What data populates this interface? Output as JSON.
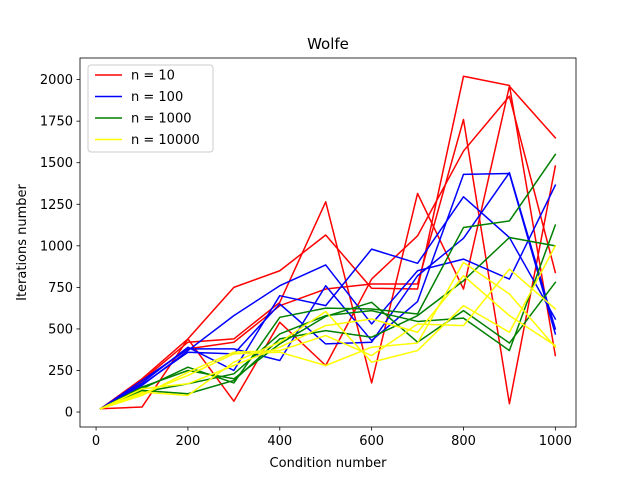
{
  "chart_data": {
    "type": "line",
    "title": "Wolfe",
    "xlabel": "Condition number",
    "ylabel": "Iterations number",
    "xlim": [
      -35,
      1045
    ],
    "ylim": [
      -90,
      2130
    ],
    "x_ticks": [
      0,
      200,
      400,
      600,
      800,
      1000
    ],
    "y_ticks": [
      0,
      250,
      500,
      750,
      1000,
      1250,
      1500,
      1750,
      2000
    ],
    "grid": false,
    "legend_position": "top-left",
    "x": [
      10,
      100,
      200,
      300,
      400,
      500,
      600,
      700,
      800,
      900,
      1000
    ],
    "series": [
      {
        "name": "n = 10",
        "group": "n = 10",
        "color": "#ff0000",
        "values": [
          20,
          190,
          420,
          440,
          660,
          1265,
          175,
          1315,
          740,
          1960,
          1650
        ]
      },
      {
        "group": "n = 10",
        "color": "#ff0000",
        "values": [
          20,
          30,
          440,
          750,
          850,
          1065,
          745,
          740,
          2020,
          1965,
          340
        ]
      },
      {
        "group": "n = 10",
        "color": "#ff0000",
        "values": [
          20,
          200,
          440,
          65,
          540,
          280,
          800,
          1060,
          1570,
          1900,
          840
        ]
      },
      {
        "group": "n = 10",
        "color": "#ff0000",
        "values": [
          20,
          185,
          380,
          420,
          640,
          740,
          770,
          770,
          1760,
          50,
          1480
        ]
      },
      {
        "name": "n = 100",
        "group": "n = 100",
        "color": "#0000ff",
        "values": [
          20,
          160,
          370,
          580,
          760,
          885,
          530,
          850,
          920,
          800,
          1365
        ]
      },
      {
        "group": "n = 100",
        "color": "#0000ff",
        "values": [
          20,
          175,
          390,
          250,
          700,
          640,
          980,
          895,
          1295,
          1050,
          560
        ]
      },
      {
        "group": "n = 100",
        "color": "#0000ff",
        "values": [
          20,
          190,
          380,
          380,
          310,
          760,
          430,
          665,
          1430,
          1435,
          470
        ]
      },
      {
        "group": "n = 100",
        "color": "#0000ff",
        "values": [
          20,
          165,
          360,
          350,
          650,
          410,
          420,
          820,
          1045,
          1440,
          500
        ]
      },
      {
        "name": "n = 1000",
        "group": "n = 1000",
        "color": "#008000",
        "values": [
          20,
          140,
          270,
          175,
          570,
          625,
          620,
          590,
          1110,
          1150,
          1550
        ]
      },
      {
        "group": "n = 1000",
        "color": "#008000",
        "values": [
          20,
          120,
          170,
          230,
          470,
          580,
          610,
          545,
          565,
          370,
          1125
        ]
      },
      {
        "group": "n = 1000",
        "color": "#008000",
        "values": [
          20,
          150,
          250,
          200,
          410,
          575,
          660,
          420,
          610,
          415,
          780
        ]
      },
      {
        "group": "n = 1000",
        "color": "#008000",
        "values": [
          20,
          130,
          110,
          190,
          440,
          490,
          450,
          580,
          790,
          1050,
          1000
        ]
      },
      {
        "name": "n = 10000",
        "group": "n = 10000",
        "color": "#ffff00",
        "values": [
          20,
          120,
          100,
          300,
          420,
          605,
          300,
          370,
          640,
          480,
          1000
        ]
      },
      {
        "group": "n = 10000",
        "color": "#ffff00",
        "values": [
          20,
          110,
          220,
          350,
          360,
          280,
          390,
          415,
          900,
          710,
          390
        ]
      },
      {
        "group": "n = 10000",
        "color": "#ffff00",
        "values": [
          20,
          140,
          170,
          280,
          390,
          520,
          560,
          480,
          820,
          580,
          400
        ]
      },
      {
        "group": "n = 10000",
        "color": "#ffff00",
        "values": [
          20,
          100,
          240,
          360,
          370,
          460,
          340,
          530,
          520,
          860,
          620
        ]
      }
    ],
    "legend": [
      {
        "label": "n = 10",
        "color": "#ff0000"
      },
      {
        "label": "n = 100",
        "color": "#0000ff"
      },
      {
        "label": "n = 1000",
        "color": "#008000"
      },
      {
        "label": "n = 10000",
        "color": "#ffff00"
      }
    ]
  }
}
